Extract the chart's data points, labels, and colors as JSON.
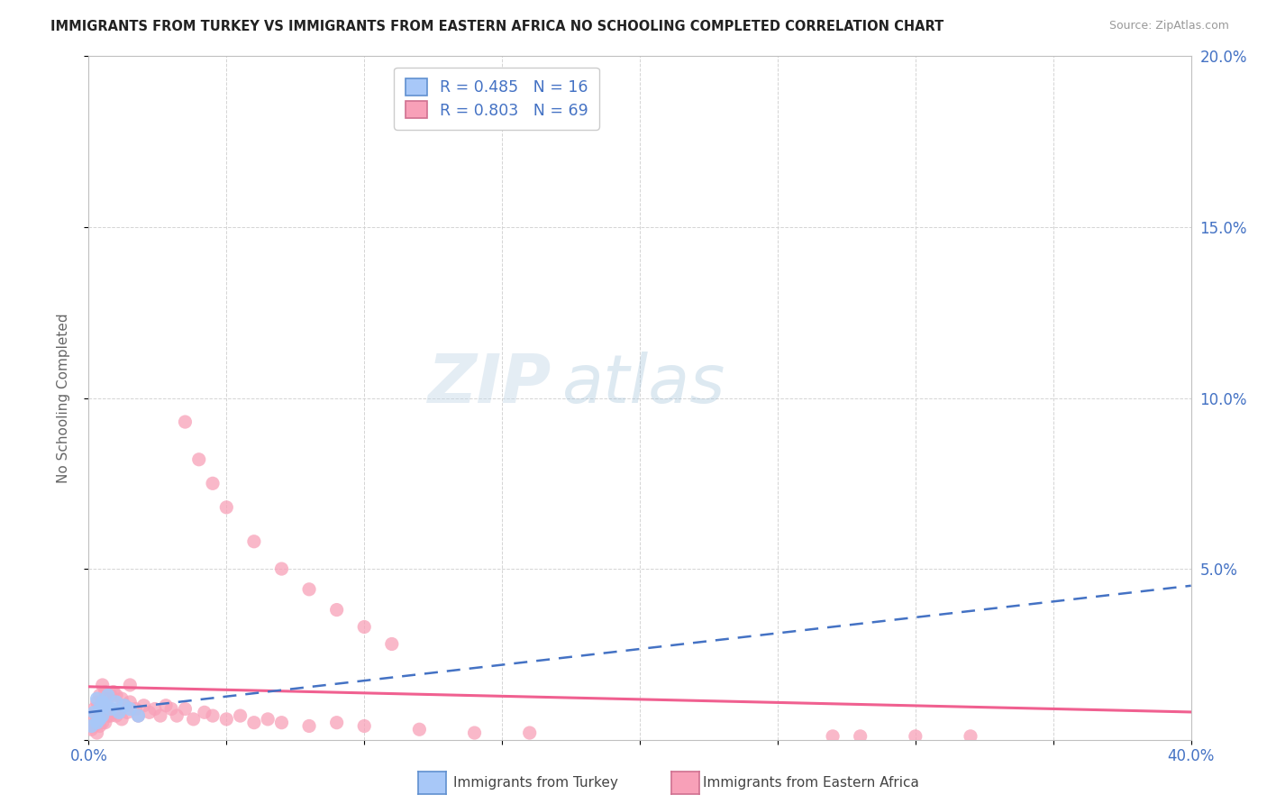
{
  "title": "IMMIGRANTS FROM TURKEY VS IMMIGRANTS FROM EASTERN AFRICA NO SCHOOLING COMPLETED CORRELATION CHART",
  "source": "Source: ZipAtlas.com",
  "ylabel": "No Schooling Completed",
  "xlim": [
    0.0,
    0.4
  ],
  "ylim": [
    0.0,
    0.2
  ],
  "xticks": [
    0.0,
    0.05,
    0.1,
    0.15,
    0.2,
    0.25,
    0.3,
    0.35,
    0.4
  ],
  "yticks": [
    0.0,
    0.05,
    0.1,
    0.15,
    0.2
  ],
  "turkey_R": 0.485,
  "turkey_N": 16,
  "eastern_africa_R": 0.803,
  "eastern_africa_N": 69,
  "turkey_color": "#a8c8f8",
  "eastern_africa_color": "#f8a0b8",
  "turkey_line_color": "#4472c4",
  "eastern_africa_line_color": "#f06090",
  "watermark_zip": "ZIP",
  "watermark_atlas": "atlas",
  "turkey_x": [
    0.001,
    0.002,
    0.003,
    0.003,
    0.004,
    0.004,
    0.005,
    0.005,
    0.006,
    0.007,
    0.008,
    0.01,
    0.011,
    0.013,
    0.015,
    0.018
  ],
  "turkey_y": [
    0.004,
    0.008,
    0.005,
    0.012,
    0.006,
    0.009,
    0.007,
    0.011,
    0.01,
    0.013,
    0.009,
    0.011,
    0.008,
    0.01,
    0.009,
    0.007
  ],
  "ea_x": [
    0.001,
    0.001,
    0.002,
    0.002,
    0.003,
    0.003,
    0.003,
    0.004,
    0.004,
    0.004,
    0.005,
    0.005,
    0.005,
    0.006,
    0.006,
    0.006,
    0.007,
    0.007,
    0.008,
    0.008,
    0.009,
    0.009,
    0.01,
    0.01,
    0.011,
    0.012,
    0.012,
    0.013,
    0.014,
    0.015,
    0.015,
    0.017,
    0.018,
    0.02,
    0.022,
    0.024,
    0.026,
    0.028,
    0.03,
    0.032,
    0.035,
    0.038,
    0.042,
    0.045,
    0.05,
    0.055,
    0.06,
    0.065,
    0.07,
    0.08,
    0.09,
    0.1,
    0.12,
    0.14,
    0.16,
    0.035,
    0.04,
    0.045,
    0.05,
    0.06,
    0.07,
    0.08,
    0.09,
    0.1,
    0.11,
    0.27,
    0.28,
    0.3,
    0.32
  ],
  "ea_y": [
    0.003,
    0.007,
    0.004,
    0.009,
    0.002,
    0.006,
    0.011,
    0.004,
    0.008,
    0.013,
    0.005,
    0.009,
    0.016,
    0.005,
    0.01,
    0.014,
    0.007,
    0.012,
    0.007,
    0.013,
    0.008,
    0.014,
    0.007,
    0.013,
    0.009,
    0.006,
    0.012,
    0.01,
    0.008,
    0.011,
    0.016,
    0.009,
    0.007,
    0.01,
    0.008,
    0.009,
    0.007,
    0.01,
    0.009,
    0.007,
    0.009,
    0.006,
    0.008,
    0.007,
    0.006,
    0.007,
    0.005,
    0.006,
    0.005,
    0.004,
    0.005,
    0.004,
    0.003,
    0.002,
    0.002,
    0.093,
    0.082,
    0.075,
    0.068,
    0.058,
    0.05,
    0.044,
    0.038,
    0.033,
    0.028,
    0.001,
    0.001,
    0.001,
    0.001
  ]
}
